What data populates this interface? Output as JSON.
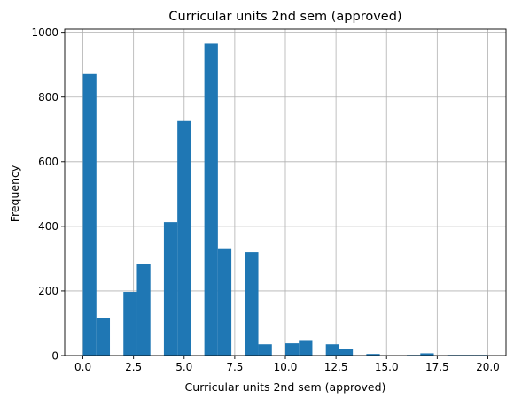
{
  "chart_data": {
    "type": "bar",
    "title": "Curricular units 2nd sem (approved)",
    "xlabel": "Curricular units 2nd sem (approved)",
    "ylabel": "Frequency",
    "xlim": [
      -0.9,
      20.9
    ],
    "ylim": [
      0,
      1010
    ],
    "grid": true,
    "bar_color": "#1f77b4",
    "bin_width": 0.6667,
    "bins": [
      {
        "x": 0.0,
        "value": 871
      },
      {
        "x": 0.6667,
        "value": 115
      },
      {
        "x": 2.0,
        "value": 197
      },
      {
        "x": 2.6667,
        "value": 284
      },
      {
        "x": 4.0,
        "value": 413
      },
      {
        "x": 4.6667,
        "value": 726
      },
      {
        "x": 6.0,
        "value": 965
      },
      {
        "x": 6.6667,
        "value": 332
      },
      {
        "x": 8.0,
        "value": 320
      },
      {
        "x": 8.6667,
        "value": 35
      },
      {
        "x": 10.0,
        "value": 38
      },
      {
        "x": 10.6667,
        "value": 48
      },
      {
        "x": 12.0,
        "value": 35
      },
      {
        "x": 12.6667,
        "value": 21
      },
      {
        "x": 14.0,
        "value": 5
      },
      {
        "x": 16.0,
        "value": 2
      },
      {
        "x": 16.6667,
        "value": 7
      },
      {
        "x": 18.0,
        "value": 2
      },
      {
        "x": 18.6667,
        "value": 2
      },
      {
        "x": 19.3333,
        "value": 2
      }
    ],
    "x_ticks": [
      {
        "value": 0.0,
        "label": "0.0"
      },
      {
        "value": 2.5,
        "label": "2.5"
      },
      {
        "value": 5.0,
        "label": "5.0"
      },
      {
        "value": 7.5,
        "label": "7.5"
      },
      {
        "value": 10.0,
        "label": "10.0"
      },
      {
        "value": 12.5,
        "label": "12.5"
      },
      {
        "value": 15.0,
        "label": "15.0"
      },
      {
        "value": 17.5,
        "label": "17.5"
      },
      {
        "value": 20.0,
        "label": "20.0"
      }
    ],
    "y_ticks": [
      {
        "value": 0,
        "label": "0"
      },
      {
        "value": 200,
        "label": "200"
      },
      {
        "value": 400,
        "label": "400"
      },
      {
        "value": 600,
        "label": "600"
      },
      {
        "value": 800,
        "label": "800"
      },
      {
        "value": 1000,
        "label": "1000"
      }
    ]
  }
}
